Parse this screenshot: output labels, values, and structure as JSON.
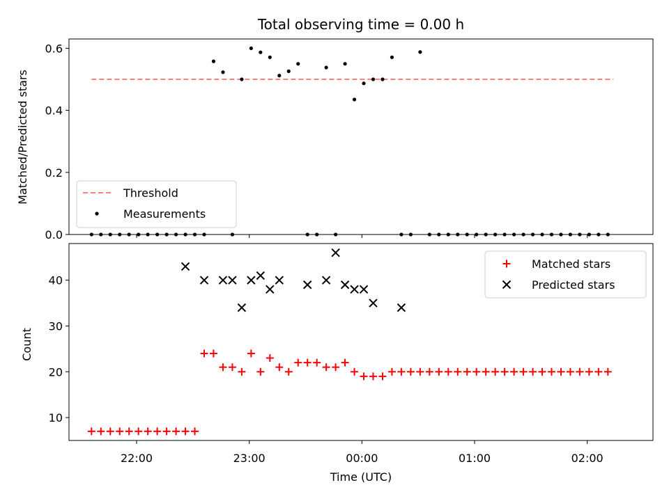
{
  "title": "Total observing time = 0.00 h",
  "xlabel": "Time (UTC)",
  "x_ticks": [
    "22:00",
    "23:00",
    "00:00",
    "01:00",
    "02:00"
  ],
  "colors": {
    "threshold": "#ff7f7f",
    "measurement": "#000000",
    "matched": "#ff0000",
    "predicted": "#000000"
  },
  "chart_data": [
    {
      "type": "scatter",
      "panel": "top",
      "ylabel": "Matched/Predicted stars",
      "ylim": [
        0,
        0.63
      ],
      "yticks": [
        0.0,
        0.2,
        0.4,
        0.6
      ],
      "legend_position": "lower-left",
      "series": [
        {
          "name": "Threshold",
          "style": "dashed-line",
          "x": [
            "21:36",
            "02:14"
          ],
          "y": [
            0.5,
            0.5
          ]
        },
        {
          "name": "Measurements",
          "style": "dot",
          "x": [
            "21:36",
            "21:41",
            "21:46",
            "21:51",
            "21:56",
            "22:01",
            "22:06",
            "22:11",
            "22:16",
            "22:21",
            "22:26",
            "22:31",
            "22:36",
            "22:41",
            "22:46",
            "22:51",
            "22:56",
            "23:01",
            "23:06",
            "23:11",
            "23:16",
            "23:21",
            "23:26",
            "23:31",
            "23:36",
            "23:41",
            "23:46",
            "23:51",
            "23:56",
            "00:01",
            "00:06",
            "00:11",
            "00:16",
            "00:21",
            "00:26",
            "00:31",
            "00:36",
            "00:41",
            "00:46",
            "00:51",
            "00:56",
            "01:01",
            "01:06",
            "01:11",
            "01:16",
            "01:21",
            "01:26",
            "01:31",
            "01:36",
            "01:41",
            "01:46",
            "01:51",
            "01:56",
            "02:01",
            "02:06",
            "02:11"
          ],
          "y": [
            0.0,
            0.0,
            0.0,
            0.0,
            0.0,
            0.0,
            0.0,
            0.0,
            0.0,
            0.0,
            0.0,
            0.0,
            0.0,
            0.558,
            0.523,
            0.0,
            0.5,
            0.6,
            0.587,
            0.571,
            0.512,
            0.526,
            0.55,
            0.0,
            0.0,
            0.538,
            0.0,
            0.55,
            0.435,
            0.487,
            0.5,
            0.5,
            0.571,
            0.0,
            0.0,
            0.588,
            0.0,
            0.0,
            0.0,
            0.0,
            0.0,
            0.0,
            0.0,
            0.0,
            0.0,
            0.0,
            0.0,
            0.0,
            0.0,
            0.0,
            0.0,
            0.0,
            0.0,
            0.0,
            0.0,
            0.0
          ]
        }
      ]
    },
    {
      "type": "scatter",
      "panel": "bottom",
      "ylabel": "Count",
      "xlabel": "Time (UTC)",
      "ylim": [
        5,
        48
      ],
      "yticks": [
        10,
        20,
        30,
        40
      ],
      "legend_position": "upper-right",
      "series": [
        {
          "name": "Matched stars",
          "marker": "+",
          "x": [
            "21:36",
            "21:41",
            "21:46",
            "21:51",
            "21:56",
            "22:01",
            "22:06",
            "22:11",
            "22:16",
            "22:21",
            "22:26",
            "22:31",
            "22:36",
            "22:41",
            "22:46",
            "22:51",
            "22:56",
            "23:01",
            "23:06",
            "23:11",
            "23:16",
            "23:21",
            "23:26",
            "23:31",
            "23:36",
            "23:41",
            "23:46",
            "23:51",
            "23:56",
            "00:01",
            "00:06",
            "00:11",
            "00:16",
            "00:21",
            "00:26",
            "00:31",
            "00:36",
            "00:41",
            "00:46",
            "00:51",
            "00:56",
            "01:01",
            "01:06",
            "01:11",
            "01:16",
            "01:21",
            "01:26",
            "01:31",
            "01:36",
            "01:41",
            "01:46",
            "01:51",
            "01:56",
            "02:01",
            "02:06",
            "02:11"
          ],
          "y": [
            7,
            7,
            7,
            7,
            7,
            7,
            7,
            7,
            7,
            7,
            7,
            7,
            24,
            24,
            21,
            21,
            20,
            24,
            20,
            23,
            21,
            20,
            22,
            22,
            22,
            21,
            21,
            22,
            20,
            19,
            19,
            19,
            20,
            20,
            20,
            20,
            20,
            20,
            20,
            20,
            20,
            20,
            20,
            20,
            20,
            20,
            20,
            20,
            20,
            20,
            20,
            20,
            20,
            20,
            20,
            20
          ]
        },
        {
          "name": "Predicted stars",
          "marker": "x",
          "x": [
            "22:26",
            "22:36",
            "22:46",
            "22:51",
            "22:56",
            "23:01",
            "23:06",
            "23:11",
            "23:16",
            "23:31",
            "23:41",
            "23:46",
            "23:51",
            "23:56",
            "00:01",
            "00:06",
            "00:21"
          ],
          "y": [
            43,
            40,
            40,
            40,
            34,
            40,
            41,
            38,
            40,
            39,
            40,
            46,
            39,
            38,
            38,
            35,
            34
          ]
        }
      ]
    }
  ]
}
